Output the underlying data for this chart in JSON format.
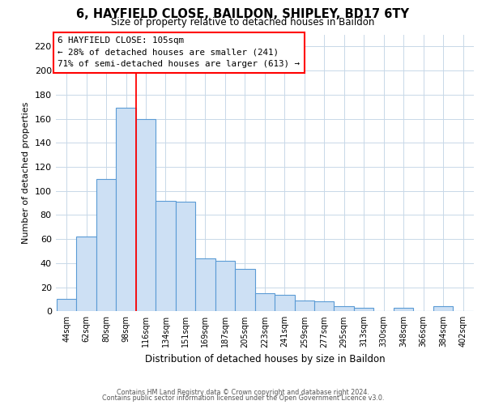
{
  "title": "6, HAYFIELD CLOSE, BAILDON, SHIPLEY, BD17 6TY",
  "subtitle": "Size of property relative to detached houses in Baildon",
  "xlabel": "Distribution of detached houses by size in Baildon",
  "ylabel": "Number of detached properties",
  "bar_labels": [
    "44sqm",
    "62sqm",
    "80sqm",
    "98sqm",
    "116sqm",
    "134sqm",
    "151sqm",
    "169sqm",
    "187sqm",
    "205sqm",
    "223sqm",
    "241sqm",
    "259sqm",
    "277sqm",
    "295sqm",
    "313sqm",
    "330sqm",
    "348sqm",
    "366sqm",
    "384sqm",
    "402sqm"
  ],
  "bar_values": [
    10,
    62,
    110,
    169,
    160,
    92,
    91,
    44,
    42,
    35,
    15,
    14,
    9,
    8,
    4,
    3,
    0,
    3,
    0,
    4,
    0
  ],
  "bar_color": "#cde0f4",
  "bar_edge_color": "#5b9bd5",
  "red_line_x": 4,
  "annotation_text1": "6 HAYFIELD CLOSE: 105sqm",
  "annotation_text2": "← 28% of detached houses are smaller (241)",
  "annotation_text3": "71% of semi-detached houses are larger (613) →",
  "ylim": [
    0,
    230
  ],
  "yticks": [
    0,
    20,
    40,
    60,
    80,
    100,
    120,
    140,
    160,
    180,
    200,
    220
  ],
  "footer1": "Contains HM Land Registry data © Crown copyright and database right 2024.",
  "footer2": "Contains public sector information licensed under the Open Government Licence v3.0.",
  "background_color": "#ffffff",
  "grid_color": "#c8d8e8"
}
